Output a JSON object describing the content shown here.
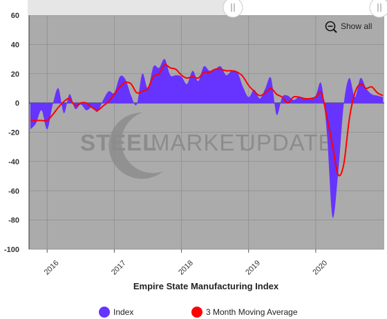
{
  "chart_data": {
    "type": "area",
    "title": "Empire State Manufacturing Index",
    "xlabel": "",
    "ylabel": "",
    "ylim": [
      -100,
      60
    ],
    "y_ticks": [
      "60",
      "40",
      "20",
      "0",
      "-20",
      "-40",
      "-60",
      "-80",
      "-100"
    ],
    "x_ticks": [
      "2016",
      "2017",
      "2018",
      "2019",
      "2020"
    ],
    "grid": true,
    "legend_position": "bottom",
    "watermark": [
      "STEEL",
      "MARKET",
      "UPDATE"
    ],
    "colors": {
      "index": "#6633ff",
      "average": "#ff0000",
      "plot_bg": "#ababab"
    },
    "series": [
      {
        "name": "Index",
        "x": [
          "2015-10",
          "2015-11",
          "2015-12",
          "2016-01",
          "2016-02",
          "2016-03",
          "2016-04",
          "2016-05",
          "2016-06",
          "2016-07",
          "2016-08",
          "2016-09",
          "2016-10",
          "2016-11",
          "2016-12",
          "2017-01",
          "2017-02",
          "2017-03",
          "2017-04",
          "2017-05",
          "2017-06",
          "2017-07",
          "2017-08",
          "2017-09",
          "2017-10",
          "2017-11",
          "2017-12",
          "2018-01",
          "2018-02",
          "2018-03",
          "2018-04",
          "2018-05",
          "2018-06",
          "2018-07",
          "2018-08",
          "2018-09",
          "2018-10",
          "2018-11",
          "2018-12",
          "2019-01",
          "2019-02",
          "2019-03",
          "2019-04",
          "2019-05",
          "2019-06",
          "2019-07",
          "2019-08",
          "2019-09",
          "2019-10",
          "2019-11",
          "2019-12",
          "2020-01",
          "2020-02",
          "2020-03",
          "2020-04",
          "2020-05",
          "2020-06",
          "2020-07",
          "2020-08",
          "2020-09",
          "2020-10",
          "2020-11",
          "2020-12",
          "2021-01"
        ],
        "values": [
          -18,
          -14,
          -5,
          -18,
          -1,
          10,
          -7,
          6,
          -4,
          -1,
          -5,
          -3,
          -6,
          2,
          8,
          7,
          18,
          16,
          5,
          -1,
          20,
          10,
          25,
          24,
          30,
          19,
          19,
          18,
          13,
          22,
          15,
          25,
          22,
          23,
          25,
          19,
          22,
          21,
          11,
          4,
          9,
          3,
          10,
          17,
          -8,
          4,
          5,
          2,
          4,
          3,
          3,
          5,
          13,
          -21,
          -78,
          -48,
          -1,
          17,
          4,
          17,
          10,
          6,
          5,
          4
        ]
      },
      {
        "name": "3 Month Moving Average",
        "x": [
          "2015-10",
          "2015-11",
          "2015-12",
          "2016-01",
          "2016-02",
          "2016-03",
          "2016-04",
          "2016-05",
          "2016-06",
          "2016-07",
          "2016-08",
          "2016-09",
          "2016-10",
          "2016-11",
          "2016-12",
          "2017-01",
          "2017-02",
          "2017-03",
          "2017-04",
          "2017-05",
          "2017-06",
          "2017-07",
          "2017-08",
          "2017-09",
          "2017-10",
          "2017-11",
          "2017-12",
          "2018-01",
          "2018-02",
          "2018-03",
          "2018-04",
          "2018-05",
          "2018-06",
          "2018-07",
          "2018-08",
          "2018-09",
          "2018-10",
          "2018-11",
          "2018-12",
          "2019-01",
          "2019-02",
          "2019-03",
          "2019-04",
          "2019-05",
          "2019-06",
          "2019-07",
          "2019-08",
          "2019-09",
          "2019-10",
          "2019-11",
          "2019-12",
          "2020-01",
          "2020-02",
          "2020-03",
          "2020-04",
          "2020-05",
          "2020-06",
          "2020-07",
          "2020-08",
          "2020-09",
          "2020-10",
          "2020-11",
          "2020-12",
          "2021-01"
        ],
        "values": [
          -12,
          -12,
          -12,
          -12,
          -8,
          -3,
          1,
          3,
          -2,
          0,
          0,
          -3,
          -5,
          -2,
          1,
          6,
          11,
          14,
          13,
          7,
          8,
          10,
          18,
          20,
          26,
          24,
          23,
          19,
          17,
          18,
          17,
          21,
          21,
          23,
          23,
          22,
          22,
          21,
          18,
          12,
          8,
          5,
          7,
          10,
          6,
          4,
          0,
          4,
          4,
          3,
          3,
          4,
          7,
          -10,
          -29,
          -49,
          -42,
          -11,
          7,
          13,
          10,
          11,
          7,
          5
        ]
      }
    ]
  },
  "navigator": {
    "label": "Show all",
    "icon": "zoom-out-icon"
  },
  "legend": [
    {
      "label": "Index",
      "color": "#6633ff"
    },
    {
      "label": "3 Month Moving Average",
      "color": "#ff0000"
    }
  ]
}
